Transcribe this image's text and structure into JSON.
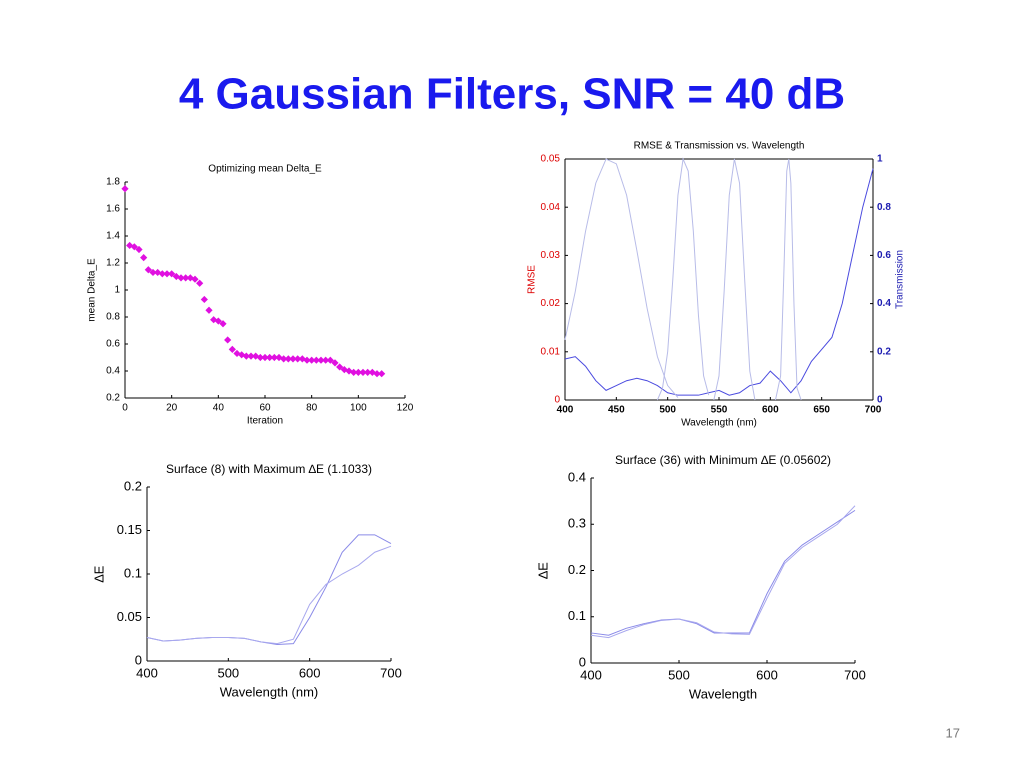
{
  "slide": {
    "title": "4 Gaussian Filters, SNR = 40 dB",
    "page_number": "17"
  },
  "chart_data": [
    {
      "type": "scatter",
      "title": "Optimizing mean Delta_E",
      "xlabel": "Iteration",
      "ylabel": "mean Delta_E",
      "xlim": [
        0,
        120
      ],
      "xticks": [
        0,
        20,
        40,
        60,
        80,
        100,
        120
      ],
      "ylim": [
        0.2,
        1.8
      ],
      "yticks": [
        0.2,
        0.4,
        0.6,
        0.8,
        1,
        1.2,
        1.4,
        1.6,
        1.8
      ],
      "series": [
        {
          "color": "#e010e0",
          "x": [
            0,
            2,
            4,
            6,
            8,
            10,
            12,
            14,
            16,
            18,
            20,
            22,
            24,
            26,
            28,
            30,
            32,
            34,
            36,
            38,
            40,
            42,
            44,
            46,
            48,
            50,
            52,
            54,
            56,
            58,
            60,
            62,
            64,
            66,
            68,
            70,
            72,
            74,
            76,
            78,
            80,
            82,
            84,
            86,
            88,
            90,
            92,
            94,
            96,
            98,
            100,
            102,
            104,
            106,
            108,
            110
          ],
          "values": [
            1.75,
            1.33,
            1.32,
            1.3,
            1.24,
            1.15,
            1.13,
            1.13,
            1.12,
            1.12,
            1.12,
            1.1,
            1.09,
            1.09,
            1.09,
            1.08,
            1.05,
            0.93,
            0.85,
            0.78,
            0.77,
            0.75,
            0.63,
            0.56,
            0.53,
            0.52,
            0.51,
            0.51,
            0.51,
            0.5,
            0.5,
            0.5,
            0.5,
            0.5,
            0.49,
            0.49,
            0.49,
            0.49,
            0.49,
            0.48,
            0.48,
            0.48,
            0.48,
            0.48,
            0.48,
            0.46,
            0.43,
            0.41,
            0.4,
            0.39,
            0.39,
            0.39,
            0.39,
            0.39,
            0.38,
            0.38
          ]
        }
      ]
    },
    {
      "type": "line",
      "title": "RMSE & Transmission vs. Wavelength",
      "xlabel": "Wavelength (nm)",
      "ylabel": "RMSE",
      "y2label": "Transmission",
      "xlim": [
        400,
        700
      ],
      "xticks": [
        400,
        450,
        500,
        550,
        600,
        650,
        700
      ],
      "ylim": [
        0,
        0.05
      ],
      "yticks": [
        0,
        0.01,
        0.02,
        0.03,
        0.04,
        0.05
      ],
      "y2lim": [
        0,
        1
      ],
      "y2ticks": [
        0,
        0.2,
        0.4,
        0.6,
        0.8,
        1
      ],
      "box": true,
      "series": [
        {
          "color": "#4a4adf",
          "x": [
            400,
            410,
            420,
            430,
            440,
            450,
            460,
            470,
            480,
            490,
            500,
            510,
            520,
            530,
            540,
            550,
            560,
            570,
            580,
            590,
            600,
            610,
            620,
            630,
            640,
            650,
            660,
            670,
            680,
            690,
            700
          ],
          "values": [
            0.0085,
            0.009,
            0.007,
            0.004,
            0.002,
            0.003,
            0.004,
            0.0045,
            0.004,
            0.003,
            0.0015,
            0.001,
            0.001,
            0.001,
            0.0015,
            0.002,
            0.001,
            0.0015,
            0.003,
            0.0035,
            0.006,
            0.004,
            0.0015,
            0.004,
            0.008,
            0.0105,
            0.013,
            0.02,
            0.03,
            0.04,
            0.048
          ]
        },
        {
          "color": "#b8bce8",
          "axis": "y2",
          "x": [
            400,
            410,
            420,
            430,
            440,
            450,
            460,
            470,
            480,
            490,
            500,
            510
          ],
          "values": [
            0.25,
            0.45,
            0.7,
            0.9,
            1,
            0.98,
            0.85,
            0.62,
            0.38,
            0.18,
            0.06,
            0.01
          ]
        },
        {
          "color": "#b8bce8",
          "axis": "y2",
          "x": [
            490,
            495,
            500,
            505,
            510,
            515,
            520,
            525,
            530,
            535,
            540
          ],
          "values": [
            0,
            0.05,
            0.2,
            0.5,
            0.85,
            1,
            0.95,
            0.7,
            0.35,
            0.1,
            0.02
          ]
        },
        {
          "color": "#b8bce8",
          "axis": "y2",
          "x": [
            545,
            550,
            555,
            560,
            565,
            570,
            575,
            580,
            585
          ],
          "values": [
            0,
            0.1,
            0.45,
            0.85,
            1,
            0.9,
            0.5,
            0.12,
            0
          ]
        },
        {
          "color": "#b8bce8",
          "axis": "y2",
          "x": [
            605,
            610,
            613,
            616,
            618,
            620,
            623,
            626,
            630
          ],
          "values": [
            0,
            0.1,
            0.5,
            0.95,
            1,
            0.9,
            0.4,
            0.05,
            0
          ]
        }
      ]
    },
    {
      "type": "line",
      "title": "Surface (8) with Maximum ∆E (1.1033)",
      "xlabel": "Wavelength (nm)",
      "ylabel": "∆E",
      "xlim": [
        400,
        700
      ],
      "xticks": [
        400,
        500,
        600,
        700
      ],
      "ylim": [
        0,
        0.2
      ],
      "yticks": [
        0,
        0.05,
        0.1,
        0.15,
        0.2
      ],
      "series": [
        {
          "color": "#8a8ae8",
          "x": [
            400,
            420,
            440,
            460,
            480,
            500,
            520,
            540,
            560,
            580,
            600,
            620,
            640,
            660,
            680,
            700
          ],
          "values": [
            0.027,
            0.023,
            0.024,
            0.026,
            0.027,
            0.027,
            0.026,
            0.022,
            0.019,
            0.02,
            0.05,
            0.085,
            0.125,
            0.145,
            0.145,
            0.135
          ]
        },
        {
          "color": "#a8a8ee",
          "x": [
            400,
            420,
            440,
            460,
            480,
            500,
            520,
            540,
            560,
            580,
            600,
            620,
            640,
            660,
            680,
            700
          ],
          "values": [
            0.027,
            0.023,
            0.024,
            0.026,
            0.027,
            0.027,
            0.026,
            0.022,
            0.02,
            0.025,
            0.065,
            0.088,
            0.1,
            0.11,
            0.125,
            0.132
          ]
        }
      ]
    },
    {
      "type": "line",
      "title": "Surface (36) with Minimum ∆E (0.05602)",
      "xlabel": "Wavelength",
      "ylabel": "∆E",
      "xlim": [
        400,
        700
      ],
      "xticks": [
        400,
        500,
        600,
        700
      ],
      "ylim": [
        0,
        0.4
      ],
      "yticks": [
        0,
        0.1,
        0.2,
        0.3,
        0.4
      ],
      "series": [
        {
          "color": "#8a8ae8",
          "x": [
            400,
            420,
            440,
            460,
            480,
            500,
            520,
            540,
            560,
            580,
            600,
            620,
            640,
            660,
            680,
            700
          ],
          "values": [
            0.065,
            0.06,
            0.075,
            0.085,
            0.093,
            0.095,
            0.085,
            0.065,
            0.065,
            0.065,
            0.15,
            0.22,
            0.255,
            0.28,
            0.305,
            0.33
          ]
        },
        {
          "color": "#a8a8ee",
          "x": [
            400,
            420,
            440,
            460,
            480,
            500,
            520,
            540,
            560,
            580,
            600,
            620,
            640,
            660,
            680,
            700
          ],
          "values": [
            0.06,
            0.055,
            0.07,
            0.083,
            0.092,
            0.095,
            0.087,
            0.067,
            0.063,
            0.062,
            0.14,
            0.215,
            0.25,
            0.275,
            0.3,
            0.34
          ]
        }
      ]
    }
  ]
}
